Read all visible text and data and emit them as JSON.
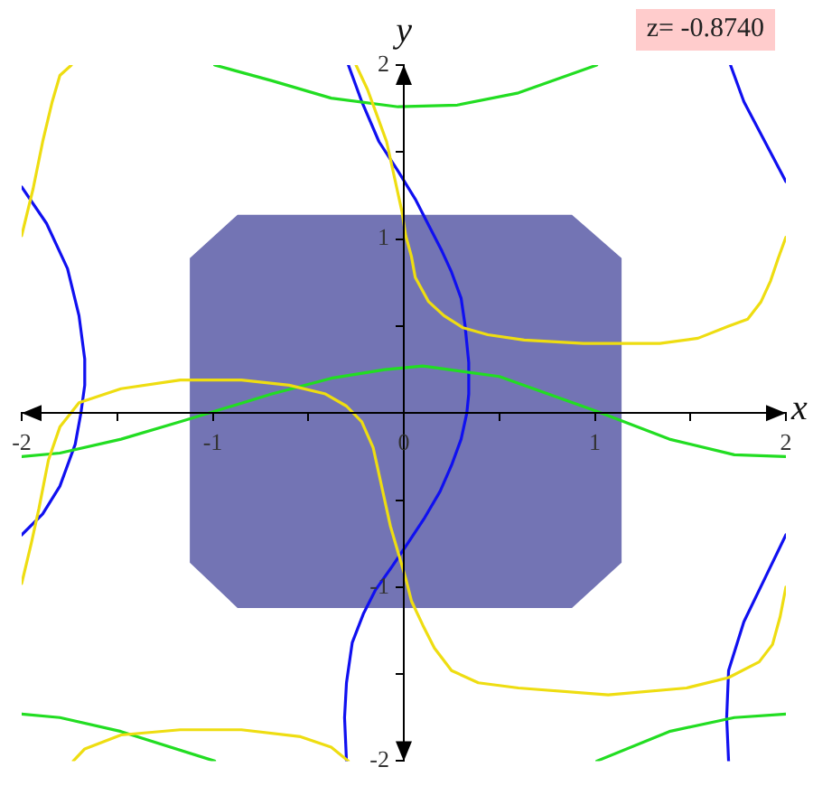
{
  "chart_data": {
    "type": "line",
    "xlabel": "x",
    "ylabel": "y",
    "annotations": [
      "z= -0.8740"
    ],
    "xlim": [
      -2,
      2
    ],
    "ylim": [
      -2,
      2
    ],
    "xticks": [
      -2,
      {
        "value": -1.5,
        "label": null
      },
      -1,
      {
        "value": -0.5,
        "label": null
      },
      0,
      {
        "value": 0.5,
        "label": null
      },
      1,
      {
        "value": 1.5,
        "label": null
      },
      2
    ],
    "yticks": [
      -2,
      {
        "value": -1.5,
        "label": null
      },
      -1,
      {
        "value": -0.5,
        "label": null
      },
      {
        "value": 0.5,
        "label": null
      },
      1,
      {
        "value": 1.5,
        "label": null
      },
      2
    ],
    "series": [
      {
        "type": "area",
        "color": "#7374b4",
        "x": [
          -0.87,
          0.88,
          1.14,
          1.14,
          0.88,
          -0.87,
          -1.12,
          -1.12,
          -0.87
        ],
        "values": [
          1.14,
          1.14,
          0.89,
          -0.86,
          -1.12,
          -1.12,
          -0.86,
          0.89,
          1.14
        ]
      },
      {
        "color": "#1010f0",
        "x": [
          -0.29,
          -0.22,
          -0.13,
          -0.03,
          0.06,
          0.13,
          0.2,
          0.25,
          0.3,
          0.32,
          0.34,
          0.34,
          0.33,
          0.3,
          0.25,
          0.19,
          0.11,
          0.02,
          -0.06,
          -0.15,
          -0.21,
          -0.27,
          -0.3,
          -0.31,
          -0.3
        ],
        "values": [
          2,
          1.79,
          1.56,
          1.39,
          1.23,
          1.08,
          0.93,
          0.81,
          0.66,
          0.51,
          0.29,
          0.11,
          0,
          -0.15,
          -0.3,
          -0.45,
          -0.6,
          -0.75,
          -0.88,
          -1.02,
          -1.15,
          -1.32,
          -1.55,
          -1.75,
          -2
        ]
      },
      {
        "color": "#1010f0",
        "x": [
          1.71,
          1.78,
          1.89,
          2
        ],
        "values": [
          2,
          1.79,
          1.56,
          1.33
        ]
      },
      {
        "color": "#1010f0",
        "x": [
          -2,
          -1.87,
          -1.76,
          -1.7,
          -1.67,
          -1.67,
          -1.69,
          -1.72,
          -1.8,
          -1.89,
          -2
        ],
        "values": [
          1.3,
          1.09,
          0.83,
          0.56,
          0.31,
          0.16,
          0,
          -0.18,
          -0.42,
          -0.58,
          -0.7
        ]
      },
      {
        "color": "#1010f0",
        "x": [
          2,
          1.89,
          1.78,
          1.7,
          1.69,
          1.7
        ],
        "values": [
          -0.7,
          -0.95,
          -1.2,
          -1.48,
          -1.75,
          -2
        ]
      },
      {
        "color": "#22dd22",
        "x": [
          -2,
          -1.8,
          -1.48,
          -1.17,
          -0.99,
          -0.69,
          -0.38,
          -0.1,
          0.1,
          0.5,
          1.01,
          1.39,
          1.73,
          2
        ],
        "values": [
          -0.25,
          -0.23,
          -0.15,
          -0.05,
          0.01,
          0.11,
          0.2,
          0.25,
          0.27,
          0.21,
          0.01,
          -0.15,
          -0.24,
          -0.25
        ]
      },
      {
        "color": "#22dd22",
        "x": [
          -0.99,
          -0.69,
          -0.38,
          -0.03,
          0.28,
          0.6,
          1.01
        ],
        "values": [
          2,
          1.91,
          1.81,
          1.76,
          1.77,
          1.84,
          2
        ]
      },
      {
        "color": "#22dd22",
        "x": [
          -2,
          -1.8,
          -1.48,
          -0.99
        ],
        "values": [
          -1.73,
          -1.75,
          -1.83,
          -2
        ]
      },
      {
        "color": "#22dd22",
        "x": [
          1.01,
          1.39,
          1.73,
          2
        ],
        "values": [
          -2,
          -1.83,
          -1.75,
          -1.73
        ]
      },
      {
        "color": "#eedd11",
        "x": [
          -0.25,
          -0.19,
          -0.13,
          -0.09,
          -0.05,
          -0.01,
          0.01,
          0.04,
          0.06,
          0.13,
          0.21,
          0.31,
          0.44,
          0.63,
          0.94,
          1.13,
          1.34,
          1.54,
          1.7,
          1.8,
          1.87,
          1.92,
          1.96,
          2
        ],
        "values": [
          2,
          1.86,
          1.68,
          1.56,
          1.36,
          1.16,
          1.02,
          0.9,
          0.78,
          0.64,
          0.56,
          0.49,
          0.45,
          0.42,
          0.4,
          0.4,
          0.4,
          0.43,
          0.5,
          0.54,
          0.64,
          0.76,
          0.89,
          1.01
        ]
      },
      {
        "color": "#eedd11",
        "x": [
          -2,
          -1.95,
          -1.91,
          -1.86,
          -1.8,
          -1.7,
          -1.48,
          -1.17,
          -0.85,
          -0.6,
          -0.41,
          -0.3,
          -0.22,
          -0.16,
          -0.12,
          -0.07,
          -0.03,
          0.01,
          0.04,
          0.1,
          0.16,
          0.25,
          0.39,
          0.6,
          1.07,
          1.48,
          1.7,
          1.86,
          1.93,
          1.97,
          2
        ],
        "values": [
          -0.98,
          -0.75,
          -0.55,
          -0.27,
          -0.08,
          0.06,
          0.14,
          0.19,
          0.19,
          0.16,
          0.11,
          0.04,
          -0.05,
          -0.2,
          -0.4,
          -0.65,
          -0.8,
          -0.95,
          -1.08,
          -1.22,
          -1.35,
          -1.48,
          -1.55,
          -1.58,
          -1.62,
          -1.58,
          -1.52,
          -1.43,
          -1.33,
          -1.17,
          -1
        ]
      },
      {
        "color": "#eedd11",
        "x": [
          -1.74,
          -1.8,
          -1.84,
          -1.89,
          -1.94,
          -2
        ],
        "values": [
          2,
          1.94,
          1.79,
          1.56,
          1.29,
          1.02
        ]
      },
      {
        "color": "#eedd11",
        "x": [
          -1.73,
          -1.67,
          -1.48,
          -1.17,
          -0.85,
          -0.54,
          -0.38,
          -0.29
        ],
        "values": [
          -2,
          -1.93,
          -1.85,
          -1.82,
          -1.82,
          -1.86,
          -1.92,
          -2
        ]
      }
    ]
  }
}
